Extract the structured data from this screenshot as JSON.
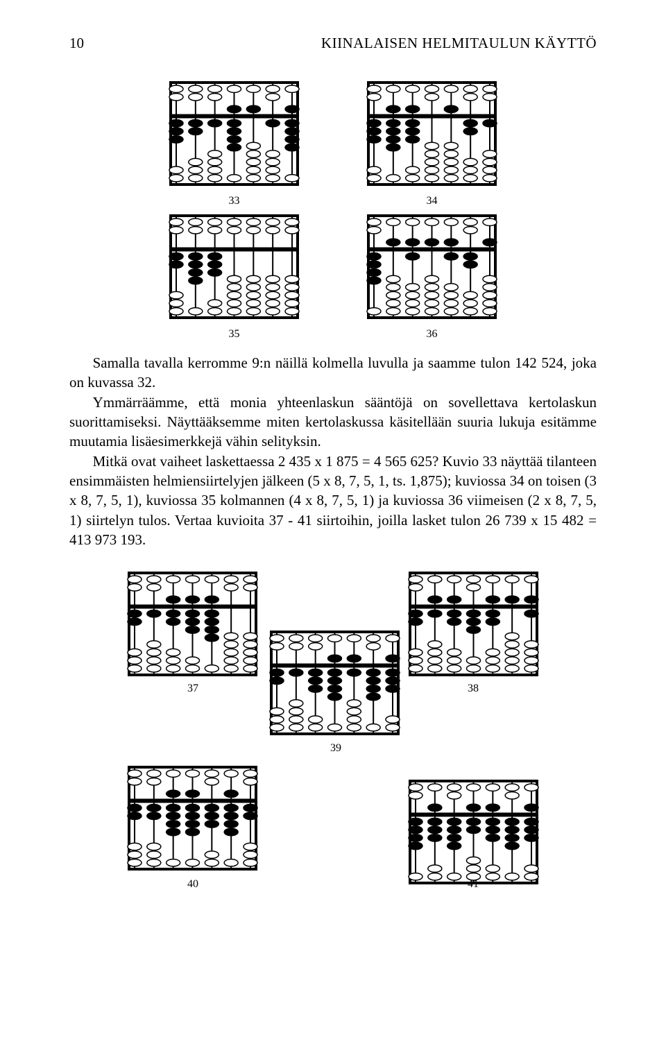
{
  "page_number": "10",
  "running_header": "KIINALAISEN HELMITAULUN KÄYTTÖ",
  "abacus_style": {
    "frame_stroke": "#000000",
    "rod_stroke": "#000000",
    "bead_fill_active": "#000000",
    "bead_fill_inactive": "#ffffff",
    "bead_stroke": "#000000",
    "background": "#ffffff",
    "rods": 7,
    "upper_beads": 2,
    "lower_beads": 5,
    "width": 195,
    "height": 155
  },
  "figures_top": [
    {
      "id": "33",
      "caption": "33",
      "upper_active": [
        0,
        0,
        0,
        1,
        1,
        0,
        1
      ],
      "lower_active": [
        3,
        2,
        1,
        4,
        0,
        1,
        4
      ]
    },
    {
      "id": "34",
      "caption": "34",
      "upper_active": [
        0,
        1,
        1,
        0,
        1,
        0,
        0
      ],
      "lower_active": [
        3,
        4,
        3,
        0,
        0,
        2,
        1
      ]
    },
    {
      "id": "35",
      "caption": "35",
      "upper_active": [
        0,
        0,
        0,
        0,
        0,
        0,
        0
      ],
      "lower_active": [
        2,
        4,
        3,
        0,
        0,
        0,
        0
      ]
    },
    {
      "id": "36",
      "caption": "36",
      "upper_active": [
        0,
        1,
        1,
        1,
        1,
        0,
        1
      ],
      "lower_active": [
        4,
        0,
        1,
        0,
        1,
        2,
        0
      ]
    }
  ],
  "paragraphs": [
    "Samalla tavalla kerromme 9:n näillä kolmella luvulla ja saamme tulon 142 524, joka on kuvassa 32.",
    "Ymmärräämme, että monia yhteenlaskun sääntöjä on sovellettava kertolaskun suorittamiseksi. Näyttääksemme miten kertolaskussa käsitellään suuria lukuja esitämme muutamia lisäesimerkkejä vähin selityksin.",
    "Mitkä ovat vaiheet laskettaessa 2 435 x 1 875 = 4 565 625? Kuvio 33 näyttää tilanteen ensimmäisten helmiensiirtelyjen jälkeen (5 x 8, 7, 5, 1, ts. 1,875); kuviossa 34 on toisen (3 x 8, 7, 5, 1), kuviossa 35 kolmannen (4 x 8, 7, 5, 1) ja kuviossa 36 viimeisen (2 x 8, 7, 5, 1) siirtelyn tulos. Vertaa kuvioita 37 - 41 siirtoihin, joilla lasket tulon 26 739 x 15 482 = 413 973 193."
  ],
  "figures_bottom": {
    "37": {
      "caption": "37",
      "upper_active": [
        0,
        0,
        1,
        1,
        1,
        0,
        0
      ],
      "lower_active": [
        2,
        1,
        2,
        3,
        4,
        0,
        0
      ]
    },
    "38": {
      "caption": "38",
      "upper_active": [
        0,
        1,
        1,
        0,
        1,
        1,
        1
      ],
      "lower_active": [
        2,
        1,
        2,
        3,
        2,
        0,
        1
      ]
    },
    "39": {
      "caption": "39",
      "upper_active": [
        0,
        0,
        0,
        1,
        1,
        0,
        1
      ],
      "lower_active": [
        2,
        1,
        3,
        4,
        1,
        4,
        3
      ]
    },
    "40": {
      "caption": "40",
      "upper_active": [
        0,
        0,
        1,
        1,
        0,
        1,
        0
      ],
      "lower_active": [
        2,
        2,
        4,
        4,
        3,
        4,
        2
      ]
    },
    "41": {
      "caption": "41",
      "upper_active": [
        0,
        1,
        0,
        1,
        1,
        0,
        1
      ],
      "lower_active": [
        4,
        3,
        4,
        2,
        3,
        4,
        3
      ]
    }
  }
}
